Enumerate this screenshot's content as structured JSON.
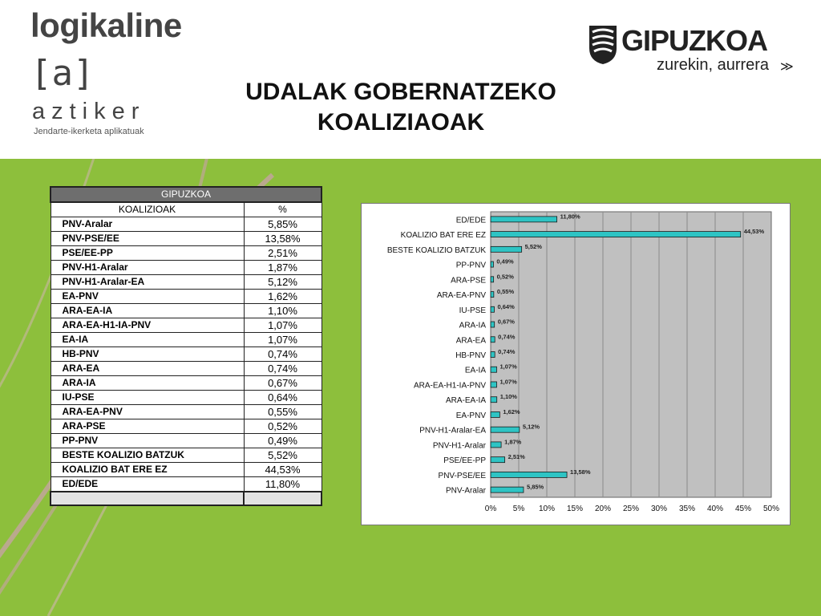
{
  "header": {
    "logo_logikaline": "logikaline",
    "logo_bracket": "[a]",
    "logo_aztiker": "aztiker",
    "logo_tagline": "Jendarte-ikerketa aplikatuak",
    "title_line1": "UDALAK GOBERNATZEKO",
    "title_line2": "KOALIZIAOAK",
    "gipuzkoa_name": "GIPUZKOA",
    "gipuzkoa_slogan": "zurekin, aurrera"
  },
  "table": {
    "title": "GIPUZKOA",
    "col_name": "KOALIZIOAK",
    "col_value": "%",
    "rows": [
      {
        "name": "PNV-Aralar",
        "value": "5,85%"
      },
      {
        "name": "PNV-PSE/EE",
        "value": "13,58%"
      },
      {
        "name": "PSE/EE-PP",
        "value": "2,51%"
      },
      {
        "name": "PNV-H1-Aralar",
        "value": "1,87%"
      },
      {
        "name": "PNV-H1-Aralar-EA",
        "value": "5,12%"
      },
      {
        "name": "EA-PNV",
        "value": "1,62%"
      },
      {
        "name": "ARA-EA-IA",
        "value": "1,10%"
      },
      {
        "name": "ARA-EA-H1-IA-PNV",
        "value": "1,07%"
      },
      {
        "name": "EA-IA",
        "value": "1,07%"
      },
      {
        "name": "HB-PNV",
        "value": "0,74%"
      },
      {
        "name": "ARA-EA",
        "value": "0,74%"
      },
      {
        "name": "ARA-IA",
        "value": "0,67%"
      },
      {
        "name": "IU-PSE",
        "value": "0,64%"
      },
      {
        "name": "ARA-EA-PNV",
        "value": "0,55%"
      },
      {
        "name": "ARA-PSE",
        "value": "0,52%"
      },
      {
        "name": "PP-PNV",
        "value": "0,49%"
      },
      {
        "name": "BESTE KOALIZIO BATZUK",
        "value": "5,52%"
      },
      {
        "name": "KOALIZIO BAT ERE EZ",
        "value": "44,53%"
      },
      {
        "name": "ED/EDE",
        "value": "11,80%"
      }
    ]
  },
  "chart_data": {
    "type": "bar",
    "orientation": "horizontal",
    "categories": [
      "ED/EDE",
      "KOALIZIO BAT ERE EZ",
      "BESTE KOALIZIO BATZUK",
      "PP-PNV",
      "ARA-PSE",
      "ARA-EA-PNV",
      "IU-PSE",
      "ARA-IA",
      "ARA-EA",
      "HB-PNV",
      "EA-IA",
      "ARA-EA-H1-IA-PNV",
      "ARA-EA-IA",
      "EA-PNV",
      "PNV-H1-Aralar-EA",
      "PNV-H1-Aralar",
      "PSE/EE-PP",
      "PNV-PSE/EE",
      "PNV-Aralar"
    ],
    "values": [
      11.8,
      44.53,
      5.52,
      0.49,
      0.52,
      0.55,
      0.64,
      0.67,
      0.74,
      0.74,
      1.07,
      1.07,
      1.1,
      1.62,
      5.12,
      1.87,
      2.51,
      13.58,
      5.85
    ],
    "value_labels": [
      "11,80%",
      "44,53%",
      "5,52%",
      "0,49%",
      "0,52%",
      "0,55%",
      "0,64%",
      "0,67%",
      "0,74%",
      "0,74%",
      "1,07%",
      "1,07%",
      "1,10%",
      "1,62%",
      "5,12%",
      "1,87%",
      "2,51%",
      "13,58%",
      "5,85%"
    ],
    "x_ticks": [
      "0%",
      "5%",
      "10%",
      "15%",
      "20%",
      "25%",
      "30%",
      "35%",
      "40%",
      "45%",
      "50%"
    ],
    "xlim": [
      0,
      50
    ],
    "grid": true,
    "colors": {
      "bar": "#2ec4c4",
      "bar_border": "#1a1a1a",
      "plot_bg": "#c0c0c0",
      "grid": "#8a8a8a"
    }
  },
  "colors": {
    "green": "#8dbf3c",
    "table_header": "#6e6e6e",
    "accent_pink": "#d63b6e",
    "accent_green": "#7db93a"
  }
}
